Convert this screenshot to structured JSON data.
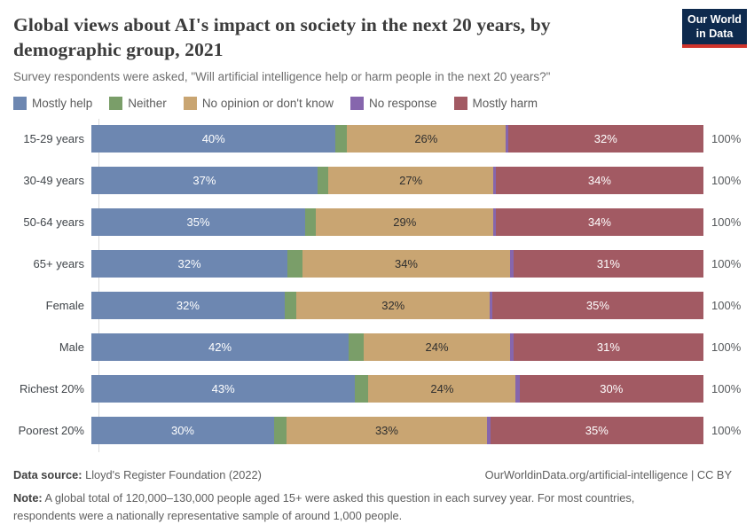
{
  "header": {
    "title": "Global views about AI's impact on society in the next 20 years, by demographic group, 2021",
    "subtitle": "Survey respondents were asked, \"Will artificial intelligence help or harm people in the next 20 years?\"",
    "logo": {
      "line1": "Our World",
      "line2": "in Data",
      "bg_color": "#0e2a4e",
      "stripe_color": "#d0342c"
    }
  },
  "legend": [
    {
      "name": "mostly-help",
      "label": "Mostly help",
      "color": "#6d87b1"
    },
    {
      "name": "neither",
      "label": "Neither",
      "color": "#7a9e69"
    },
    {
      "name": "no-opinion",
      "label": "No opinion or don't know",
      "color": "#c9a572"
    },
    {
      "name": "no-response",
      "label": "No response",
      "color": "#8666ad"
    },
    {
      "name": "mostly-harm",
      "label": "Mostly harm",
      "color": "#a25a63"
    }
  ],
  "chart_data": {
    "type": "bar",
    "stacked": true,
    "orientation": "horizontal",
    "xlim": [
      0,
      100
    ],
    "grid": false,
    "legend_position": "top",
    "title": "Global views about AI's impact on society in the next 20 years, by demographic group, 2021",
    "categories": [
      "15-29 years",
      "30-49 years",
      "50-64 years",
      "65+ years",
      "Female",
      "Male",
      "Richest 20%",
      "Poorest 20%"
    ],
    "series": [
      {
        "name": "Mostly help",
        "color": "#6d87b1",
        "text_color": "#ffffff",
        "values": [
          40,
          37,
          35,
          32,
          32,
          42,
          43,
          30
        ],
        "labels": [
          "40%",
          "37%",
          "35%",
          "32%",
          "32%",
          "42%",
          "43%",
          "30%"
        ]
      },
      {
        "name": "Neither",
        "color": "#7a9e69",
        "text_color": "#ffffff",
        "values": [
          1.8,
          1.8,
          1.8,
          2.4,
          2.0,
          2.4,
          2.2,
          2.0
        ],
        "labels": [
          "",
          "",
          "",
          "",
          "",
          "",
          "",
          ""
        ]
      },
      {
        "name": "No opinion or don't know",
        "color": "#c9a572",
        "text_color": "#2f2f2f",
        "values": [
          26,
          27,
          29,
          34,
          32,
          24,
          24,
          33
        ],
        "labels": [
          "26%",
          "27%",
          "29%",
          "34%",
          "32%",
          "24%",
          "24%",
          "33%"
        ]
      },
      {
        "name": "No response",
        "color": "#8666ad",
        "text_color": "#ffffff",
        "values": [
          0.4,
          0.4,
          0.4,
          0.5,
          0.4,
          0.5,
          0.6,
          0.5
        ],
        "labels": [
          "",
          "",
          "",
          "",
          "",
          "",
          "",
          ""
        ]
      },
      {
        "name": "Mostly harm",
        "color": "#a25a63",
        "text_color": "#ffffff",
        "values": [
          32,
          34,
          34,
          31,
          35,
          31,
          30,
          35
        ],
        "labels": [
          "32%",
          "34%",
          "34%",
          "31%",
          "35%",
          "31%",
          "30%",
          "35%"
        ]
      }
    ],
    "row_total_label": "100%"
  },
  "footer": {
    "source_label": "Data source:",
    "source_text": " Lloyd's Register Foundation (2022)",
    "citation": "OurWorldinData.org/artificial-intelligence | CC BY",
    "note_label": "Note:",
    "note_text": " A global total of 120,000–130,000 people aged 15+ were asked this question in each survey year. For most countries, respondents were a nationally representative sample of around 1,000 people."
  }
}
